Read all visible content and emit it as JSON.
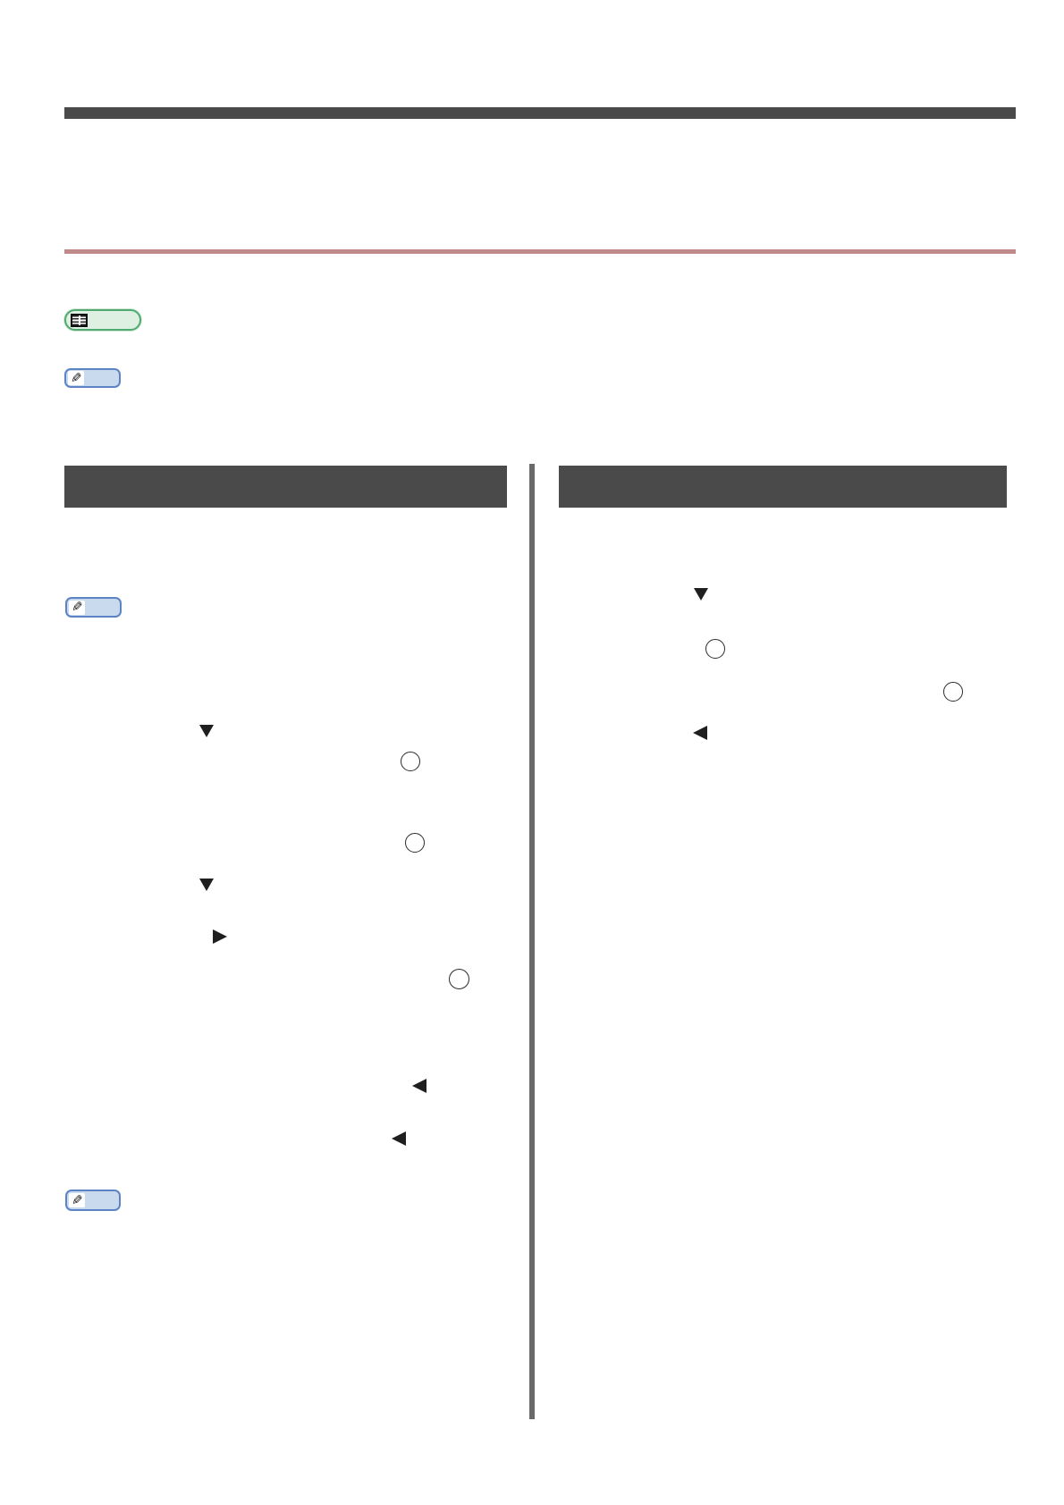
{
  "page": {
    "type": "manual-page",
    "background": "#ffffff",
    "visible_text": ""
  },
  "colors": {
    "top_bar": "#4a4a4a",
    "pink_rule": "#c08a8a",
    "section_header": "#4a4a4a",
    "column_divider": "#6a6a6a",
    "reference_badge_fill": "#def0e2",
    "reference_badge_border": "#51a971",
    "note_badge_fill": "#c9daee",
    "note_badge_border": "#5c84c5",
    "marker_glyph": "#1f1f1f"
  },
  "badges": {
    "reference": {
      "icon": "open-book-grid-icon"
    },
    "note": {
      "icon": "pencil-icon",
      "glyph": "✎"
    }
  },
  "sections": {
    "left_header_label": "",
    "right_header_label": ""
  },
  "left_column": {
    "markers": [
      "down-triangle-key-icon",
      "circle-key-icon",
      "circle-key-icon",
      "down-triangle-key-icon",
      "right-triangle-key-icon",
      "circle-key-icon",
      "left-triangle-key-icon",
      "left-triangle-key-icon",
      "note-badge"
    ]
  },
  "right_column": {
    "markers": [
      "down-triangle-key-icon",
      "circle-key-icon",
      "circle-key-icon",
      "left-triangle-key-icon"
    ]
  }
}
